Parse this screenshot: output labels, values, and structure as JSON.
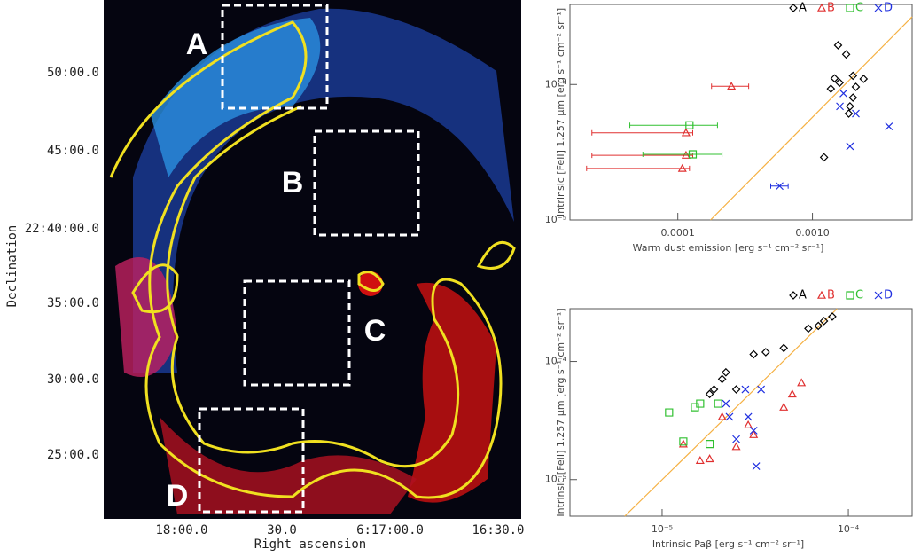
{
  "image": {
    "y_axis_label": "Declination",
    "x_axis_label": "Right ascension",
    "y_tick_labels": [
      "50:00.0",
      "45:00.0",
      "22:40:00.0",
      "35:00.0",
      "30:00.0",
      "25:00.0"
    ],
    "x_tick_labels": [
      "18:00.0",
      "30.0",
      "6:17:00.0",
      "16:30.0"
    ],
    "regions": [
      "A",
      "B",
      "C",
      "D"
    ]
  },
  "chart_data": [
    {
      "type": "scatter",
      "x_label": "Warm dust emission [erg s⁻¹ cm⁻² sr⁻¹]",
      "y_label": "Intrinsic [FeII] 1.257 μm [erg s⁻¹ cm⁻² sr⁻¹]",
      "xscale": "log",
      "yscale": "log",
      "xlim": [
        1.58e-05,
        0.0055
      ],
      "ylim": [
        1e-05,
        0.00039
      ],
      "xticks": [
        0.0001,
        {
          "value": 0.001,
          "label": "0.0010"
        }
      ],
      "yticks": [
        {
          "value": 0.0001,
          "label": "10⁻⁴"
        },
        {
          "value": 1e-05,
          "label": "10⁻⁵"
        }
      ],
      "fit_line": {
        "color": "#f5b041",
        "x": [
          0.000175,
          0.0055
        ],
        "y": [
          1e-05,
          0.000316
        ]
      },
      "series": [
        {
          "name": "A",
          "marker": "diamond",
          "color": "#000000",
          "x": [
            0.00155,
            0.00178,
            0.00146,
            0.00137,
            0.00159,
            0.002,
            0.0024,
            0.0021,
            0.002,
            0.0019,
            0.00186,
            0.00122
          ],
          "values": [
            0.000195,
            0.000167,
            0.000111,
            9.3e-05,
            0.000103,
            0.000116,
            0.00011,
            9.6e-05,
            8e-05,
            6.9e-05,
            6.1e-05,
            2.9e-05
          ]
        },
        {
          "name": "B",
          "marker": "triangle",
          "color": "#e03030",
          "x": [
            0.00025,
            0.000115,
            0.000115,
            0.000108
          ],
          "values": [
            9.7e-05,
            4.4e-05,
            3e-05,
            2.4e-05
          ],
          "xerr": [
            [
              0.000178,
              0.000336
            ],
            [
              2.3e-05,
              0.000129
            ],
            [
              2.3e-05,
              0.000129
            ],
            [
              2.1e-05,
              0.000122
            ]
          ]
        },
        {
          "name": "C",
          "marker": "square",
          "color": "#30c030",
          "x": [
            0.000122,
            0.000129
          ],
          "values": [
            5e-05,
            3.05e-05
          ],
          "xerr": [
            [
              4.4e-05,
              0.000197
            ],
            [
              5.5e-05,
              0.000213
            ]
          ]
        },
        {
          "name": "D",
          "marker": "cross",
          "color": "#2030e0",
          "x": [
            0.00057,
            0.0017,
            0.0016,
            0.0021,
            0.0019,
            0.0037
          ],
          "values": [
            1.78e-05,
            8.6e-05,
            6.9e-05,
            6.1e-05,
            3.5e-05,
            4.9e-05
          ],
          "xerr": [
            [
              0.00049,
              0.00066
            ],
            null,
            null,
            null,
            null,
            null
          ]
        }
      ]
    },
    {
      "type": "scatter",
      "x_label": "Intrinsic Paβ [erg s⁻¹ cm⁻² sr⁻¹]",
      "y_label": "Intrinsic [FeII] 1.257 μm [erg s⁻¹ cm⁻² sr⁻¹]",
      "xscale": "log",
      "yscale": "log",
      "xlim": [
        3.2e-06,
        0.00022
      ],
      "ylim": [
        4.9e-06,
        0.00028
      ],
      "xticks": [
        {
          "value": 1e-05,
          "label": "10⁻⁵"
        },
        {
          "value": 0.0001,
          "label": "10⁻⁴"
        }
      ],
      "yticks": [
        {
          "value": 0.0001,
          "label": "10⁻⁴"
        },
        {
          "value": 1e-05,
          "label": "10⁻⁵"
        }
      ],
      "fit_line": {
        "color": "#f5b041",
        "x": [
          6.3e-06,
          8.7e-05
        ],
        "y": [
          4.9e-06,
          0.00028
        ]
      },
      "series": [
        {
          "name": "A",
          "marker": "diamond",
          "color": "#000000",
          "x": [
            8.2e-05,
            7.4e-05,
            6.9e-05,
            6.1e-05,
            4.5e-05,
            3.6e-05,
            3.1e-05,
            2.2e-05,
            2.1e-05,
            1.9e-05,
            1.8e-05,
            2.5e-05
          ],
          "values": [
            0.00024,
            0.00022,
            0.0002,
            0.00019,
            0.00013,
            0.00012,
            0.000115,
            8.1e-05,
            7.1e-05,
            5.8e-05,
            5.3e-05,
            5.8e-05
          ]
        },
        {
          "name": "B",
          "marker": "triangle",
          "color": "#e03030",
          "x": [
            5.6e-05,
            5e-05,
            4.5e-05,
            3.1e-05,
            2.5e-05,
            1.8e-05,
            1.6e-05,
            1.3e-05,
            2.9e-05,
            2.1e-05
          ],
          "values": [
            6.6e-05,
            5.3e-05,
            4.1e-05,
            2.4e-05,
            1.9e-05,
            1.5e-05,
            1.45e-05,
            2e-05,
            2.9e-05,
            3.4e-05
          ]
        },
        {
          "name": "C",
          "marker": "square",
          "color": "#30c030",
          "x": [
            1.09e-05,
            1.6e-05,
            1.5e-05,
            2e-05,
            1.8e-05,
            1.3e-05
          ],
          "values": [
            3.7e-05,
            4.4e-05,
            4.1e-05,
            4.4e-05,
            2e-05,
            2.1e-05
          ]
        },
        {
          "name": "D",
          "marker": "cross",
          "color": "#2030e0",
          "x": [
            2.8e-05,
            3.4e-05,
            2.2e-05,
            2.3e-05,
            2.9e-05,
            3.1e-05,
            2.5e-05,
            3.2e-05
          ],
          "values": [
            5.8e-05,
            5.8e-05,
            4.4e-05,
            3.4e-05,
            3.4e-05,
            2.6e-05,
            2.2e-05,
            1.3e-05
          ]
        }
      ]
    }
  ]
}
